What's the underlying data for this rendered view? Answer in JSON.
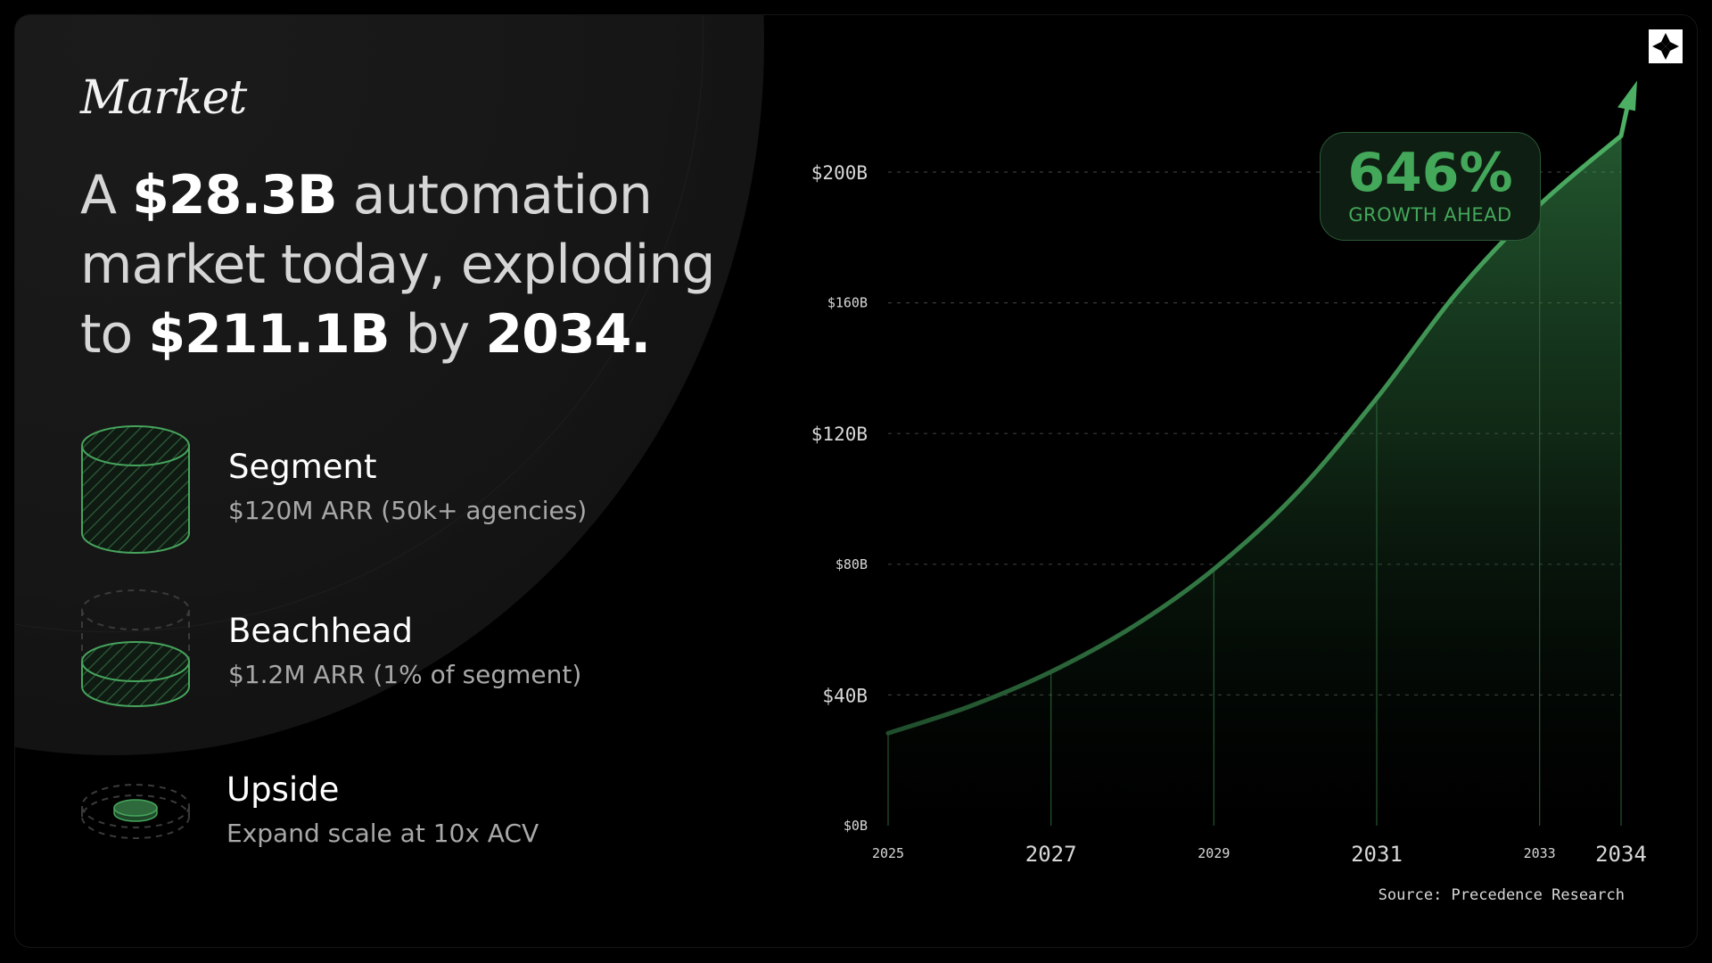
{
  "kicker": "Market",
  "headline": {
    "p1": "A ",
    "b1": "$28.3B",
    "p2": " automation market today, exploding to ",
    "b2": "$211.1B",
    "p3": " by ",
    "b3": "2034.",
    "p4": ""
  },
  "segments": [
    {
      "title": "Segment",
      "sub": "$120M ARR (50k+ agencies)",
      "icon": "cylinder-full-icon"
    },
    {
      "title": "Beachhead",
      "sub": "$1.2M ARR (1% of segment)",
      "icon": "cylinder-partial-icon"
    },
    {
      "title": "Upside",
      "sub": "Expand scale at 10x ACV",
      "icon": "disc-icon"
    }
  ],
  "badge": {
    "value": "646%",
    "caption": "GROWTH AHEAD"
  },
  "source": "Source: Precedence Research",
  "colors": {
    "accent": "#43a85a",
    "accent_bright": "#4caf63",
    "background": "#000000"
  },
  "chart_data": {
    "type": "area",
    "x": [
      2025,
      2026,
      2027,
      2028,
      2029,
      2030,
      2031,
      2032,
      2033,
      2034
    ],
    "values": [
      28.3,
      36.5,
      47.1,
      60.8,
      78.5,
      101.3,
      130.8,
      163.6,
      190,
      211.1
    ],
    "y_ticks": [
      "$0B",
      "$40B",
      "$80B",
      "$120B",
      "$160B",
      "$200B"
    ],
    "y_tick_values": [
      0,
      40,
      80,
      120,
      160,
      200
    ],
    "x_ticks": [
      "2025",
      "2027",
      "2029",
      "2031",
      "2033",
      "2034"
    ],
    "x_tick_values": [
      2025,
      2027,
      2029,
      2031,
      2033,
      2034
    ],
    "ylim": [
      0,
      200
    ],
    "xlim": [
      2025,
      2034
    ],
    "grid": true,
    "title": "",
    "xlabel": "",
    "ylabel": ""
  }
}
